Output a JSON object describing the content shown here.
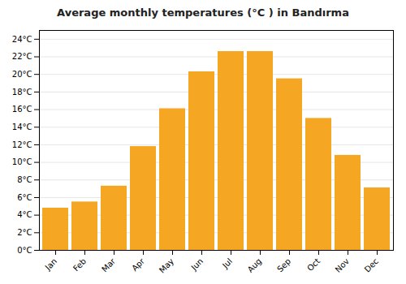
{
  "chart_data": {
    "type": "bar",
    "title": "Average monthly temperatures (°C ) in Bandırma",
    "categories": [
      "Jan",
      "Feb",
      "Mar",
      "Apr",
      "May",
      "Jun",
      "Jul",
      "Aug",
      "Sep",
      "Oct",
      "Nov",
      "Dec"
    ],
    "values": [
      4.8,
      5.5,
      7.3,
      11.8,
      16.1,
      20.3,
      22.6,
      22.6,
      19.5,
      15.0,
      10.8,
      7.1
    ],
    "color": "#F5A623",
    "ylim": [
      0,
      25
    ],
    "yticks": [
      {
        "value": 0,
        "label": "0°C"
      },
      {
        "value": 2,
        "label": "2°C"
      },
      {
        "value": 4,
        "label": "4°C"
      },
      {
        "value": 6,
        "label": "6°C"
      },
      {
        "value": 8,
        "label": "8°C"
      },
      {
        "value": 10,
        "label": "10°C"
      },
      {
        "value": 12,
        "label": "12°C"
      },
      {
        "value": 14,
        "label": "14°C"
      },
      {
        "value": 16,
        "label": "16°C"
      },
      {
        "value": 18,
        "label": "18°C"
      },
      {
        "value": 20,
        "label": "20°C"
      },
      {
        "value": 22,
        "label": "22°C"
      },
      {
        "value": 24,
        "label": "24°C"
      }
    ],
    "grid": true
  }
}
